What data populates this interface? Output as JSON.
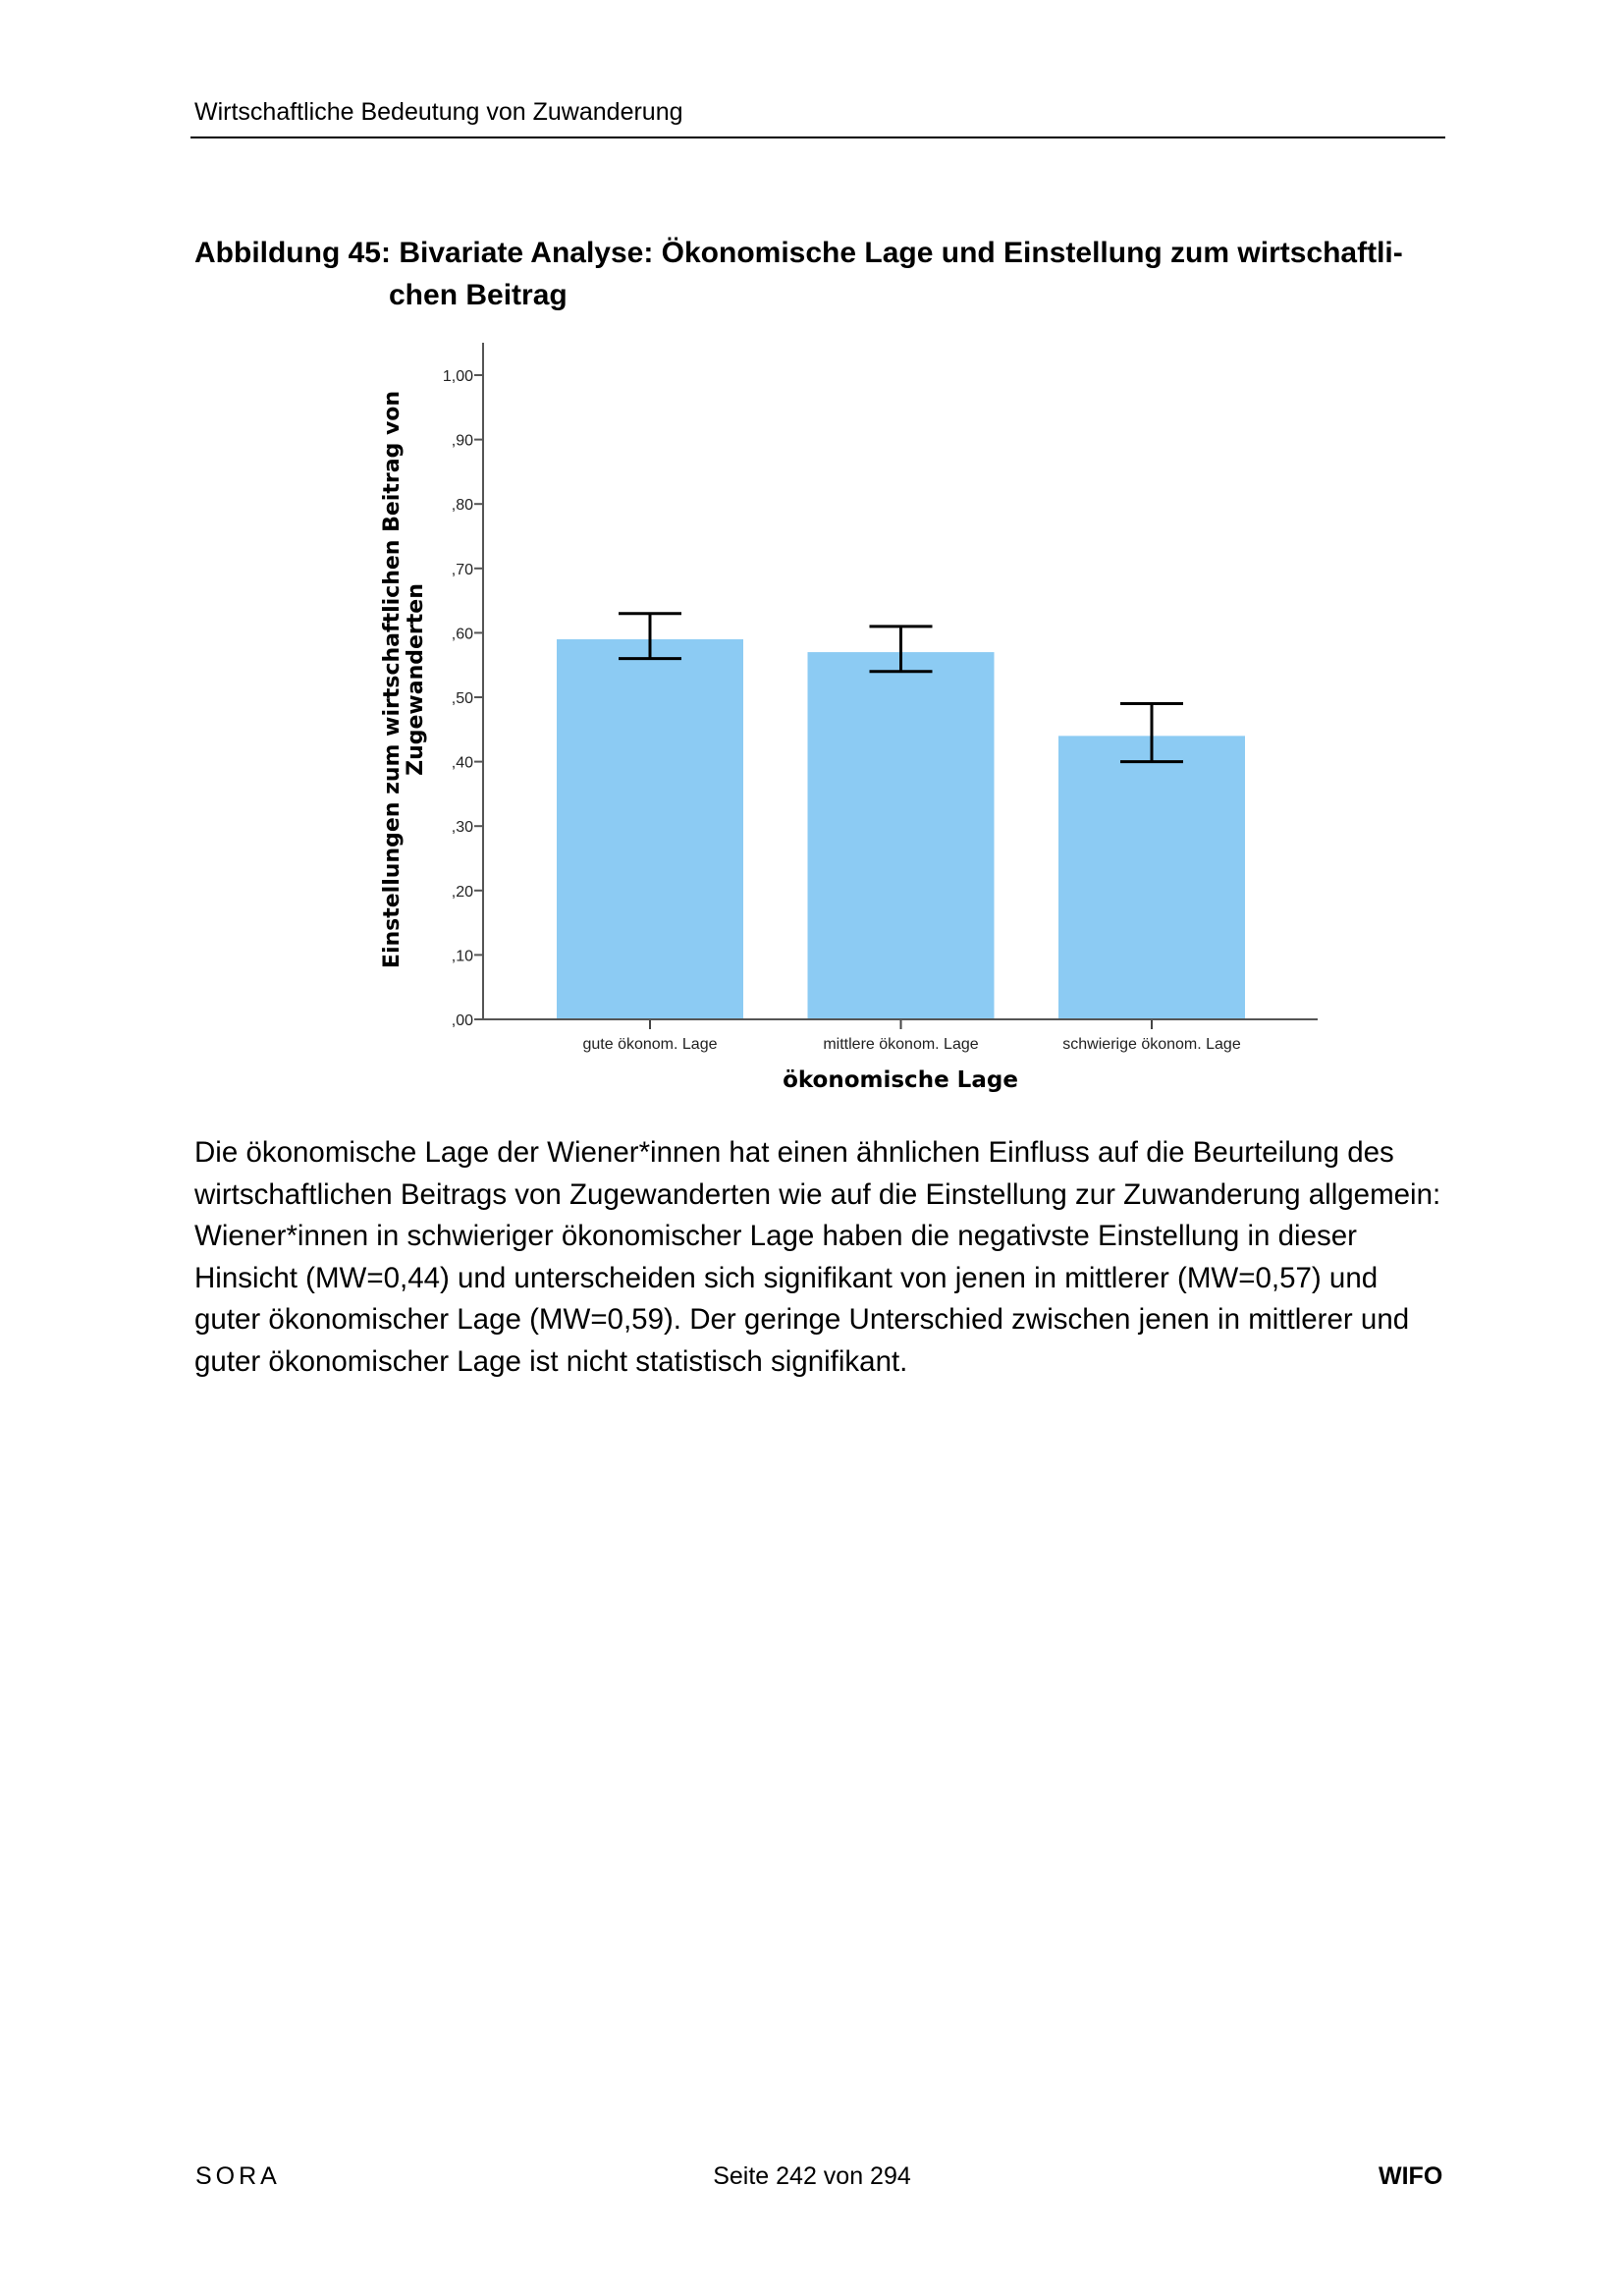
{
  "header": {
    "title": "Wirtschaftliche Bedeutung von Zuwanderung"
  },
  "figure": {
    "title_line1": "Abbildung 45: Bivariate Analyse: Ökonomische Lage und Einstellung zum wirtschaftli-",
    "title_line2": "chen Beitrag"
  },
  "chart_data": {
    "type": "bar",
    "title": "",
    "xlabel": "ökonomische Lage",
    "ylabel_line1": "Einstellungen zum wirtschaftlichen Beitrag von",
    "ylabel_line2": "Zugewanderten",
    "categories": [
      "gute ökonom. Lage",
      "mittlere ökonom. Lage",
      "schwierige ökonom. Lage"
    ],
    "values": [
      0.59,
      0.57,
      0.44
    ],
    "error_low": [
      0.56,
      0.54,
      0.4
    ],
    "error_high": [
      0.63,
      0.61,
      0.49
    ],
    "ylim": [
      0,
      1.0
    ],
    "yticks": [
      ",00",
      ",10",
      ",20",
      ",30",
      ",40",
      ",50",
      ",60",
      ",70",
      ",80",
      ",90",
      "1,00"
    ],
    "grid": false,
    "bar_color": "#8ccbf3",
    "error_bar_color": "#000000"
  },
  "body": {
    "paragraph": "Die ökonomische Lage der Wiener*innen hat einen ähnlichen Einfluss auf die Beurteilung des wirtschaftlichen Beitrags von Zugewanderten wie auf die Einstellung zur Zuwanderung allgemein: Wiener*innen in schwieriger ökonomischer Lage haben die negativste Einstellung in dieser Hinsicht (MW=0,44) und unterscheiden sich signifikant von jenen in mittlerer (MW=0,57) und guter ökonomischer Lage (MW=0,59). Der geringe Unterschied zwischen je­nen in mittlerer und guter ökonomischer Lage ist nicht statistisch signifikant."
  },
  "footer": {
    "left": "SORA",
    "center": "Seite 242 von 294",
    "right": "WIFO"
  }
}
